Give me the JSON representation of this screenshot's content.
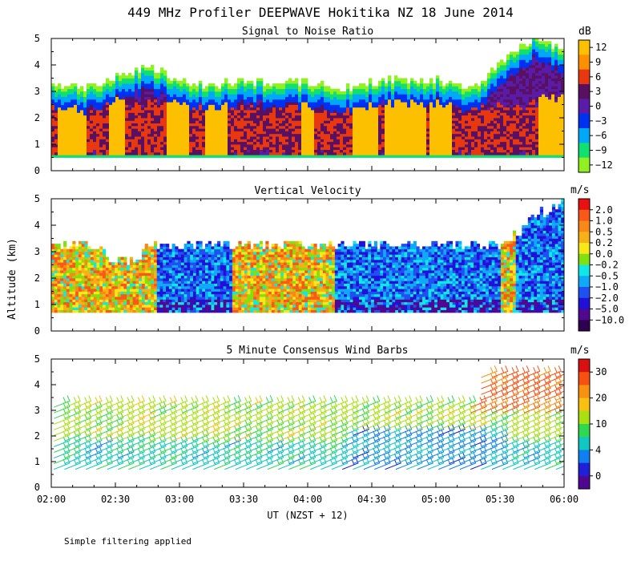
{
  "figure": {
    "title": "449 MHz Profiler DEEPWAVE Hokitika NZ 18 June 2014",
    "ylabel": "Altitude (km)",
    "xlabel": "UT  (NZST + 12)",
    "footnote": "Simple filtering applied"
  },
  "chart_data": [
    {
      "type": "heatmap",
      "title": "Signal to Noise Ratio",
      "units": "dB",
      "x_range_hours": [
        2,
        6
      ],
      "xticks": [
        "02:00",
        "02:30",
        "03:00",
        "03:30",
        "04:00",
        "04:30",
        "05:00",
        "05:30",
        "06:00"
      ],
      "ylim": [
        0,
        5
      ],
      "yticks": [
        "0",
        "1",
        "2",
        "3",
        "4",
        "5"
      ],
      "colorbar_ticks": [
        "12",
        "9",
        "6",
        "3",
        "0",
        "−3",
        "−6",
        "−9",
        "−12"
      ],
      "colorbar_colors": [
        "#fcc000",
        "#fc9000",
        "#e83810",
        "#5a1060",
        "#5a1ca8",
        "#0030f0",
        "#00a8f8",
        "#10e070",
        "#90f020"
      ],
      "levels": [
        -12,
        -9,
        -6,
        -3,
        0,
        3,
        6,
        9,
        12
      ],
      "approx_profile": {
        "low_echo_floor_km": 0.6,
        "echo_top_km_samples": [
          [
            2.0,
            3.3
          ],
          [
            2.25,
            3.1
          ],
          [
            2.5,
            3.5
          ],
          [
            2.75,
            3.9
          ],
          [
            3.0,
            3.3
          ],
          [
            3.25,
            3.2
          ],
          [
            3.5,
            3.4
          ],
          [
            3.75,
            3.2
          ],
          [
            4.0,
            3.3
          ],
          [
            4.25,
            3.1
          ],
          [
            4.5,
            3.3
          ],
          [
            4.75,
            3.4
          ],
          [
            5.0,
            3.4
          ],
          [
            5.25,
            3.0
          ],
          [
            5.5,
            4.0
          ],
          [
            5.75,
            5.0
          ],
          [
            6.0,
            4.5
          ]
        ]
      }
    },
    {
      "type": "heatmap",
      "title": "Vertical Velocity",
      "units": "m/s",
      "x_range_hours": [
        2,
        6
      ],
      "xticks": [
        "02:00",
        "02:30",
        "03:00",
        "03:30",
        "04:00",
        "04:30",
        "05:00",
        "05:30",
        "06:00"
      ],
      "ylim": [
        0,
        5
      ],
      "yticks": [
        "0",
        "1",
        "2",
        "3",
        "4",
        "5"
      ],
      "colorbar_ticks": [
        "2.0",
        "1.0",
        "0.5",
        "0.2",
        "0.0",
        "−0.2",
        "−0.5",
        "−1.0",
        "−2.0",
        "−5.0",
        "−10.0"
      ],
      "colorbar_colors": [
        "#e81010",
        "#f85818",
        "#f88818",
        "#f8b018",
        "#f8e818",
        "#80e010",
        "#10e8e8",
        "#10a8f8",
        "#2050f0",
        "#2010d8",
        "#500890",
        "#300050"
      ],
      "approx_profile": {
        "data_floor_km": 0.65,
        "data_top_km": 3.2,
        "late_top_km": 5.0
      }
    },
    {
      "type": "wind_barbs",
      "title": "5 Minute Consensus Wind Barbs",
      "units": "m/s",
      "x_range_hours": [
        2,
        6
      ],
      "xticks": [
        "02:00",
        "02:30",
        "03:00",
        "03:30",
        "04:00",
        "04:30",
        "05:00",
        "05:30",
        "06:00"
      ],
      "ylim": [
        0,
        5
      ],
      "yticks": [
        "0",
        "1",
        "2",
        "3",
        "4",
        "5"
      ],
      "colorbar_ticks": [
        "30",
        "20",
        "10",
        "4",
        "0"
      ],
      "colorbar_colors": [
        "#d81010",
        "#f85010",
        "#f89010",
        "#f8c010",
        "#a8e010",
        "#30d850",
        "#10c8c0",
        "#1080f0",
        "#2020d8",
        "#500890"
      ],
      "typical_speed_ms": {
        "low_levels": 12,
        "mid_levels": 18,
        "late_upper": 28
      }
    }
  ]
}
